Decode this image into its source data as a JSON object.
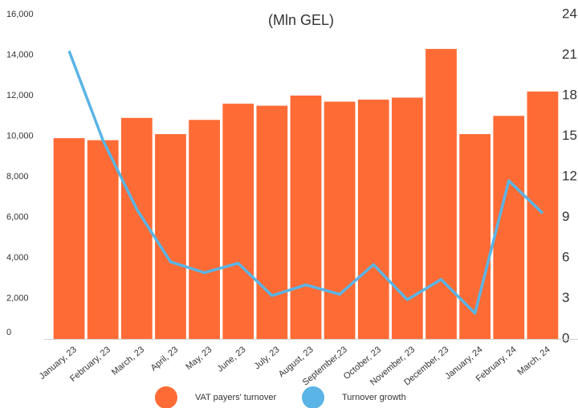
{
  "chart_data": {
    "type": "bar_line",
    "title": "(Mln GEL)",
    "categories": [
      "January, 23",
      "February, 23",
      "March, 23",
      "April, 23",
      "May, 23",
      "June, 23",
      "July, 23",
      "August, 23",
      "September,23",
      "October, 23",
      "November, 23",
      "December, 23",
      "January, 24",
      "February, 24",
      "March, 24"
    ],
    "series": [
      {
        "name": "VAT payers' turnover",
        "color": "#ff6b35",
        "kind": "bar",
        "values": [
          9900,
          9800,
          10900,
          10100,
          10800,
          11600,
          11500,
          12000,
          11700,
          11800,
          11900,
          14300,
          10100,
          11000,
          12200
        ]
      },
      {
        "name": "Turnover growth",
        "color": "#5ab4e5",
        "kind": "line",
        "axis": "y2",
        "values": [
          21.3,
          14.7,
          9.6,
          5.7,
          4.9,
          5.6,
          3.2,
          4.0,
          3.3,
          5.5,
          2.9,
          4.4,
          1.9,
          11.7,
          9.3
        ]
      }
    ],
    "ylim": [
      0,
      16000
    ],
    "yticks": [
      0,
      {
        "value": 2000,
        "label": "2,000"
      },
      {
        "value": 4000,
        "label": "4,000"
      },
      {
        "value": 6000,
        "label": "6,000"
      },
      {
        "value": 8000,
        "label": "8,000"
      },
      {
        "value": 10000,
        "label": "10,000"
      },
      {
        "value": 12000,
        "label": "12,000"
      },
      {
        "value": 14000,
        "label": "14,000"
      },
      {
        "value": 16000,
        "label": "16,000"
      }
    ],
    "y2lim": [
      0,
      24
    ],
    "y2ticks": [
      0,
      3,
      6,
      9,
      12,
      15,
      18,
      21,
      24
    ]
  }
}
